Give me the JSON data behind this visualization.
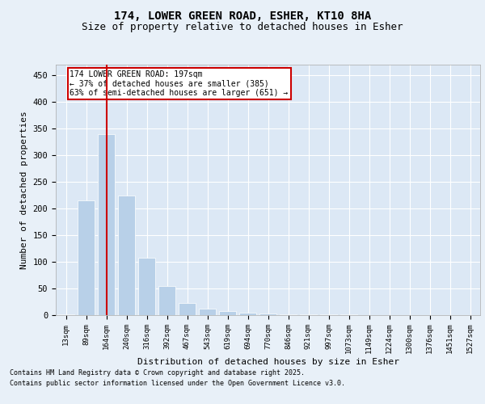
{
  "title1": "174, LOWER GREEN ROAD, ESHER, KT10 8HA",
  "title2": "Size of property relative to detached houses in Esher",
  "xlabel": "Distribution of detached houses by size in Esher",
  "ylabel": "Number of detached properties",
  "categories": [
    "13sqm",
    "89sqm",
    "164sqm",
    "240sqm",
    "316sqm",
    "392sqm",
    "467sqm",
    "543sqm",
    "619sqm",
    "694sqm",
    "770sqm",
    "846sqm",
    "921sqm",
    "997sqm",
    "1073sqm",
    "1149sqm",
    "1224sqm",
    "1300sqm",
    "1376sqm",
    "1451sqm",
    "1527sqm"
  ],
  "values": [
    2,
    216,
    340,
    225,
    108,
    55,
    22,
    12,
    7,
    5,
    3,
    2,
    1,
    1,
    1,
    0,
    0,
    0,
    0,
    0,
    0
  ],
  "bar_color": "#b8d0e8",
  "vline_index": 2,
  "vline_color": "#cc0000",
  "annotation_text": "174 LOWER GREEN ROAD: 197sqm\n← 37% of detached houses are smaller (385)\n63% of semi-detached houses are larger (651) →",
  "ylim": [
    0,
    470
  ],
  "yticks": [
    0,
    50,
    100,
    150,
    200,
    250,
    300,
    350,
    400,
    450
  ],
  "footer1": "Contains HM Land Registry data © Crown copyright and database right 2025.",
  "footer2": "Contains public sector information licensed under the Open Government Licence v3.0.",
  "bg_color": "#e8f0f8",
  "plot_bg_color": "#dce8f5"
}
